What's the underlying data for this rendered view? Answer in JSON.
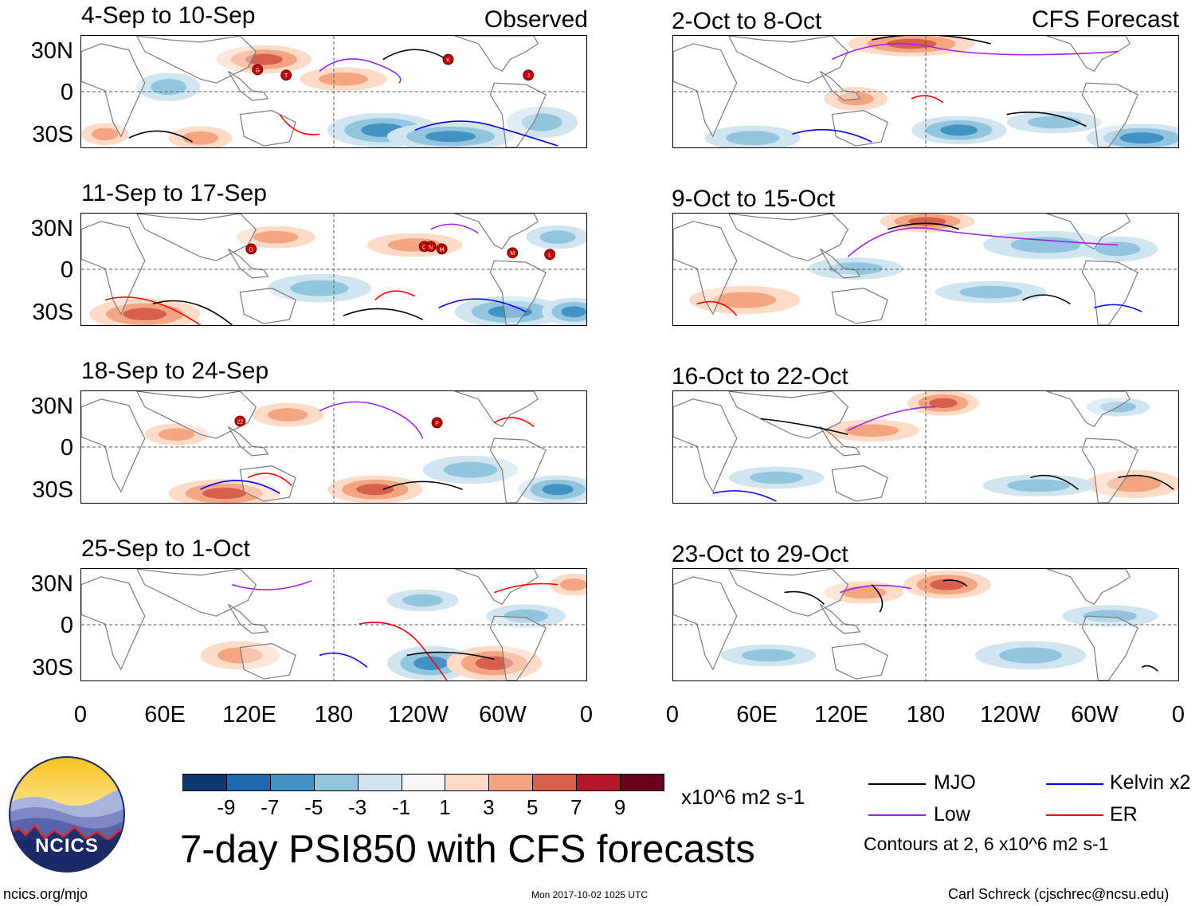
{
  "figure": {
    "title": "7-day PSI850 with CFS forecasts",
    "source_url": "ncics.org/mjo",
    "timestamp": "Mon 2017-10-02 1025 UTC",
    "author": "Carl Schreck (cjschrec@ncsu.edu)",
    "logo_text": "NCICS"
  },
  "left_column_label": "Observed",
  "right_column_label": "CFS Forecast",
  "lat_labels": [
    "30N",
    "0",
    "30S"
  ],
  "lon_labels": [
    "0",
    "60E",
    "120E",
    "180",
    "120W",
    "60W",
    "0"
  ],
  "panels": [
    {
      "id": "obs-1",
      "title": "4-Sep to 10-Sep",
      "kind": "observed",
      "storms": [
        "G",
        "T",
        "K",
        "J"
      ]
    },
    {
      "id": "obs-2",
      "title": "11-Sep to 17-Sep",
      "kind": "observed",
      "storms": [
        "D",
        "O",
        "N",
        "M",
        "M",
        "L"
      ]
    },
    {
      "id": "obs-3",
      "title": "18-Sep to 24-Sep",
      "kind": "observed",
      "storms": [
        "22",
        "P"
      ]
    },
    {
      "id": "obs-4",
      "title": "25-Sep to 1-Oct",
      "kind": "observed",
      "storms": []
    },
    {
      "id": "fc-1",
      "title": "2-Oct to 8-Oct",
      "kind": "forecast",
      "storms": []
    },
    {
      "id": "fc-2",
      "title": "9-Oct to 15-Oct",
      "kind": "forecast",
      "storms": []
    },
    {
      "id": "fc-3",
      "title": "16-Oct to 22-Oct",
      "kind": "forecast",
      "storms": []
    },
    {
      "id": "fc-4",
      "title": "23-Oct to 29-Oct",
      "kind": "forecast",
      "storms": []
    }
  ],
  "colorbar": {
    "units": "x10^6 m2 s-1",
    "ticks": [
      "-9",
      "-7",
      "-5",
      "-3",
      "-1",
      "1",
      "3",
      "5",
      "7",
      "9"
    ],
    "colors": [
      "#0b3a6f",
      "#1f68ad",
      "#4392c4",
      "#92c5de",
      "#d1e5f0",
      "#f7f7f7",
      "#fddbc7",
      "#f4a582",
      "#d6604d",
      "#b2182b",
      "#67001f"
    ]
  },
  "legend": {
    "items": [
      {
        "label": "MJO",
        "color": "#000000"
      },
      {
        "label": "Kelvin x2",
        "color": "#0000ff"
      },
      {
        "label": "Low",
        "color": "#a020f0"
      },
      {
        "label": "ER",
        "color": "#ff0000"
      }
    ],
    "note": "Contours at 2, 6 x10^6 m2 s-1"
  }
}
